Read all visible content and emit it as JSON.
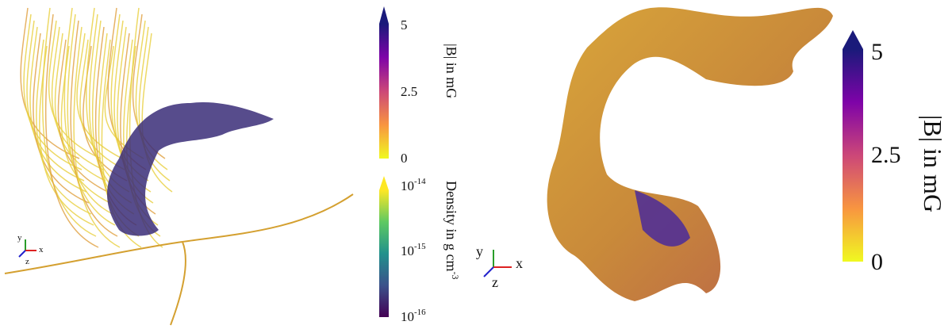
{
  "left_panel": {
    "axes": {
      "x": "x",
      "y": "y",
      "z": "z"
    },
    "colorbar_b": {
      "label": "|B| in mG",
      "ticks": [
        "5",
        "2.5",
        "0"
      ]
    },
    "colorbar_density": {
      "label": "Density in g cm",
      "label_exponent": "-3",
      "ticks": [
        {
          "base": "10",
          "exponent": "-14"
        },
        {
          "base": "10",
          "exponent": "-15"
        },
        {
          "base": "10",
          "exponent": "-16"
        }
      ]
    }
  },
  "right_panel": {
    "axes": {
      "x": "x",
      "y": "y",
      "z": "z"
    },
    "colorbar_b": {
      "label": "|B| in mG",
      "ticks": [
        "5",
        "2.5",
        "0"
      ]
    }
  }
}
